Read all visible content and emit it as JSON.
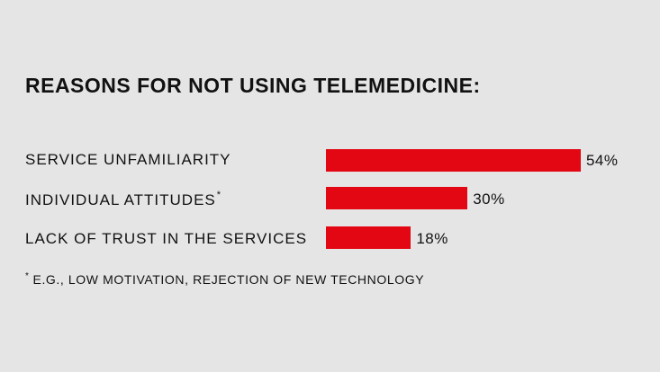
{
  "chart_data": {
    "type": "bar",
    "orientation": "horizontal",
    "title": "REASONS FOR NOT USING TELEMEDICINE:",
    "categories": [
      "SERVICE UNFAMILIARITY",
      "INDIVIDUAL ATTITUDES",
      "LACK OF TRUST IN THE SERVICES"
    ],
    "category_markers": [
      "",
      "*",
      ""
    ],
    "values": [
      54,
      30,
      18
    ],
    "value_labels": [
      "54%",
      "30%",
      "18%"
    ],
    "bar_color": "#e30613",
    "grid": false,
    "footnote": {
      "marker": "*",
      "text": "E.G., LOW MOTIVATION, REJECTION OF NEW TECHNOLOGY"
    }
  }
}
